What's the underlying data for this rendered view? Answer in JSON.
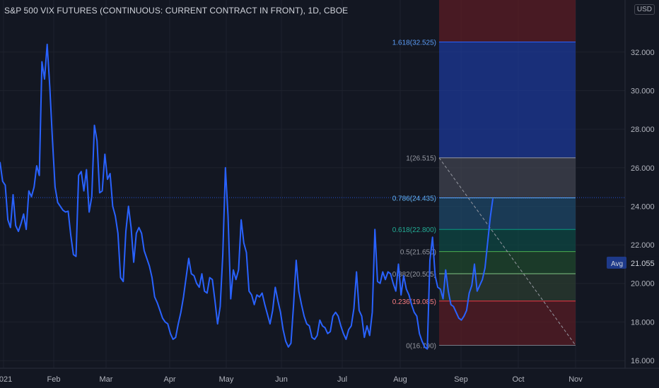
{
  "header": {
    "title": "S&P 500 VIX FUTURES (CONTINUOUS: CURRENT CONTRACT IN FRONT), 1D, CBOE",
    "currency": "USD"
  },
  "colors": {
    "background": "#131722",
    "line": "#2962ff",
    "axis_text": "#b2b5be",
    "grid": "#1e222d"
  },
  "chart_data": {
    "type": "line",
    "y_axis": {
      "ticks": [
        "16.000",
        "18.000",
        "20.000",
        "22.000",
        "24.000",
        "26.000",
        "28.000",
        "30.000",
        "32.000"
      ],
      "range": [
        15.6,
        34.7
      ],
      "side": "right"
    },
    "x_axis": {
      "ticks": [
        "2021",
        "Feb",
        "Mar",
        "Apr",
        "May",
        "Jun",
        "Jul",
        "Aug",
        "Sep",
        "Oct",
        "Nov"
      ]
    },
    "avg_label": {
      "label": "Avg",
      "value": "21.055",
      "y": 21.055
    },
    "last_value_line": 24.45,
    "series": [
      {
        "values": [
          26.3,
          25.3,
          25.1,
          23.3,
          22.9,
          24.6,
          23.0,
          22.7,
          23.1,
          23.6,
          22.8,
          24.8,
          24.5,
          25.0,
          26.1,
          25.6,
          31.5,
          30.6,
          32.4,
          30.2,
          27.5,
          25.0,
          24.2,
          24.0,
          23.8,
          23.7,
          23.75,
          22.5,
          21.5,
          21.4,
          25.6,
          25.8,
          24.8,
          25.9,
          23.7,
          24.5,
          28.2,
          27.4,
          24.7,
          24.8,
          26.7,
          25.4,
          25.7,
          24.0,
          23.5,
          22.6,
          20.3,
          20.1,
          22.7,
          24.0,
          22.9,
          21.1,
          22.6,
          22.9,
          22.6,
          21.7,
          21.3,
          20.9,
          20.3,
          19.3,
          19.0,
          18.6,
          18.2,
          18.0,
          17.9,
          17.4,
          17.1,
          17.2,
          17.9,
          18.5,
          19.3,
          20.3,
          21.3,
          20.5,
          20.4,
          20.0,
          19.8,
          20.5,
          19.6,
          19.5,
          20.3,
          20.2,
          19.1,
          17.9,
          18.8,
          21.5,
          26.0,
          23.5,
          19.2,
          20.7,
          20.2,
          20.7,
          23.3,
          22.1,
          21.6,
          19.6,
          19.4,
          18.9,
          19.4,
          19.3,
          19.5,
          18.9,
          18.4,
          17.9,
          18.6,
          19.8,
          19.1,
          18.5,
          17.6,
          17.0,
          16.7,
          16.9,
          18.9,
          21.2,
          19.6,
          18.9,
          18.3,
          17.9,
          17.8,
          17.2,
          17.1,
          17.3,
          18.1,
          17.8,
          17.7,
          17.4,
          17.5,
          18.3,
          18.5,
          18.3,
          17.8,
          17.4,
          17.1,
          17.6,
          17.8,
          18.7,
          20.6,
          18.6,
          18.3,
          17.2,
          17.8,
          17.3,
          18.5,
          22.8,
          20.1,
          20.0,
          20.6,
          20.2,
          20.6,
          20.5,
          20.0,
          19.6,
          21.0,
          19.4,
          20.4,
          19.7,
          19.4,
          18.9,
          18.5,
          18.3,
          17.4,
          17.0,
          16.7,
          16.6,
          21.2,
          22.4,
          20.4,
          19.8,
          19.7,
          19.2,
          20.7,
          19.6,
          18.9,
          18.8,
          18.5,
          18.2,
          18.1,
          18.3,
          18.6,
          19.5,
          19.9,
          21.0,
          19.6,
          19.9,
          20.2,
          20.8,
          22.1,
          23.4,
          24.4
        ]
      }
    ],
    "fibonacci": {
      "levels": [
        {
          "label": "1.618(32.525)",
          "value": 32.525,
          "fill": "#1c3a9e",
          "line": "#2962ff",
          "text": "#5b9cf6"
        },
        {
          "label": "1(26.515)",
          "value": 26.515,
          "fill": "#434651",
          "line": "#9598a1",
          "text": "#9598a1"
        },
        {
          "label": "0.786(24.435)",
          "value": 24.435,
          "fill": "#1e4a6b",
          "line": "#64b5f6",
          "text": "#64b5f6"
        },
        {
          "label": "0.618(22.800)",
          "value": 22.8,
          "fill": "#0d4a45",
          "line": "#089981",
          "text": "#22ab94"
        },
        {
          "label": "0.5(21.650)",
          "value": 21.65,
          "fill": "#1f4a2c",
          "line": "#4caf50",
          "text": "#9598a1"
        },
        {
          "label": "0.382(20.505)",
          "value": 20.505,
          "fill": "#2c3f31",
          "line": "#81c784",
          "text": "#9598a1"
        },
        {
          "label": "0.236(19.085)",
          "value": 19.085,
          "fill": "#5b1c24",
          "line": "#f23645",
          "text": "#f77c80"
        },
        {
          "label": "0(16.790)",
          "value": 16.79,
          "fill": "",
          "line": "#787b86",
          "text": "#9598a1"
        }
      ],
      "top_zone_fill": "#5b1c24",
      "trend_from": 26.515,
      "trend_to": 16.79
    }
  }
}
